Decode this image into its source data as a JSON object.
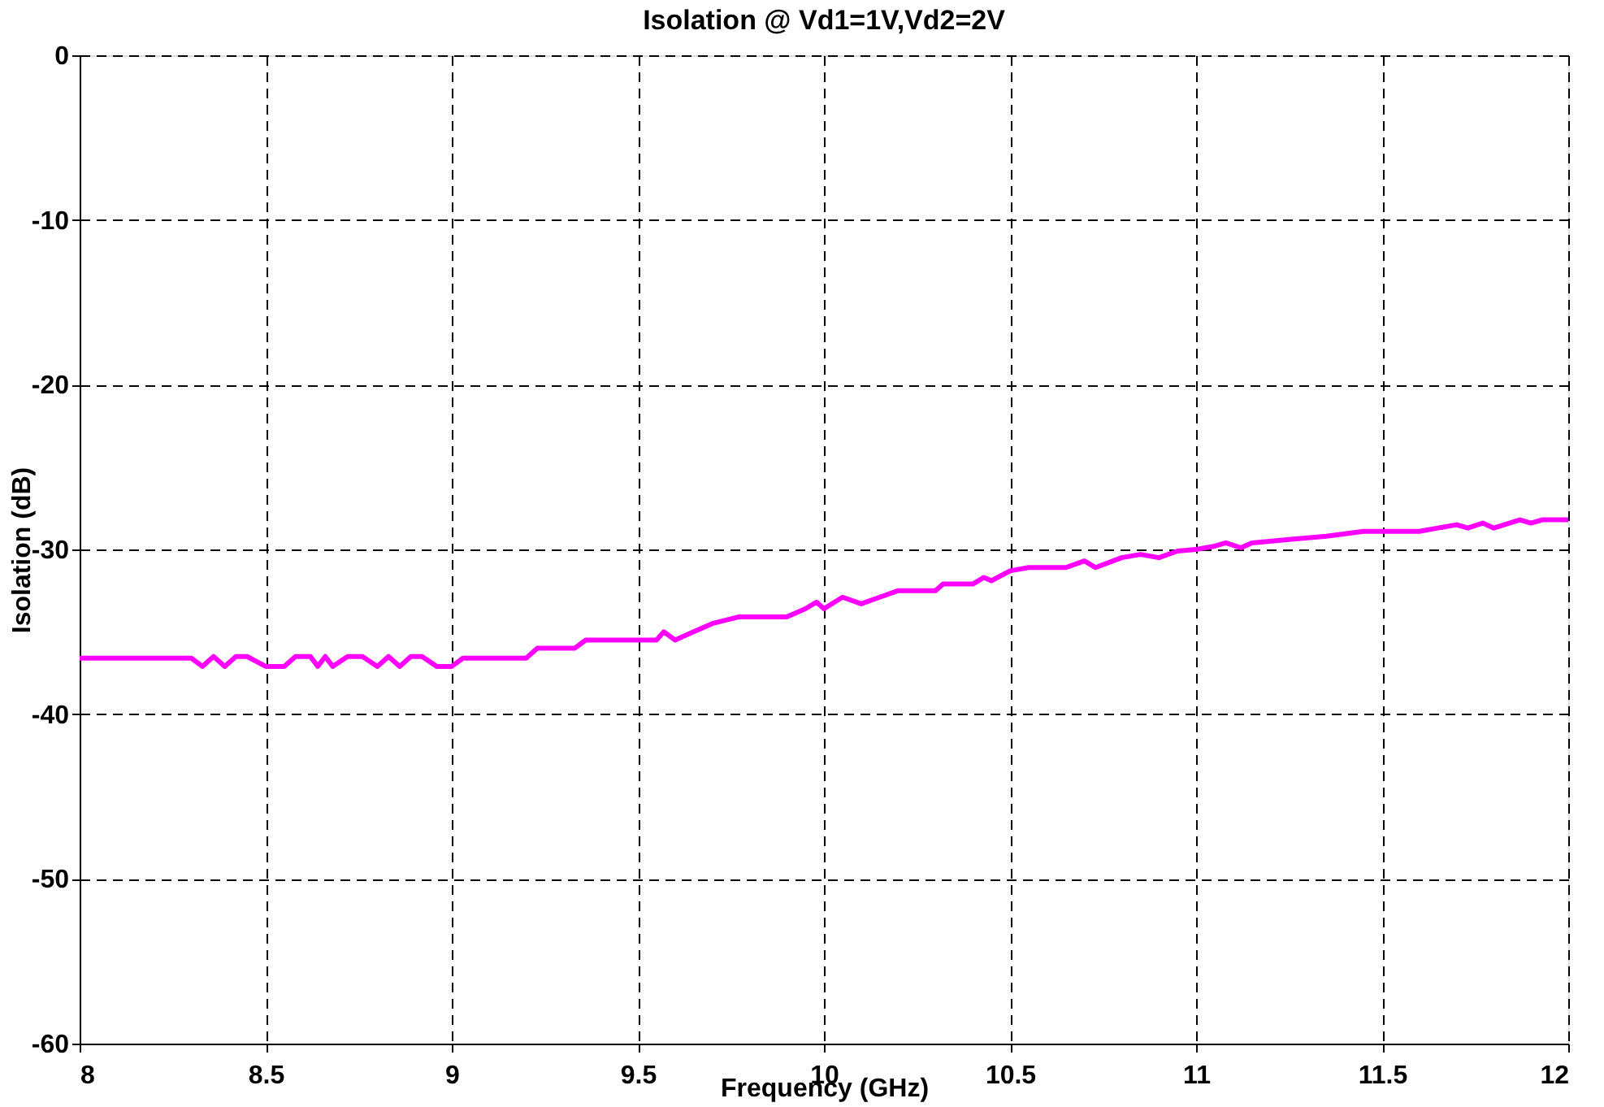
{
  "chart_data": {
    "type": "line",
    "title": "Isolation @ Vd1=1V,Vd2=2V",
    "xlabel": "Frequency (GHz)",
    "ylabel": "Isolation (dB)",
    "xlim": [
      8,
      12
    ],
    "xticks": [
      8,
      8.5,
      9,
      9.5,
      10,
      10.5,
      11,
      11.5,
      12
    ],
    "ylim": [
      -60,
      0
    ],
    "yticks": [
      -60,
      -50,
      -40,
      -30,
      -20,
      -10,
      0
    ],
    "grid": true,
    "marker": "none",
    "line_style": "solid",
    "series": [
      {
        "color": "#ff00ff",
        "x": [
          8,
          8.3,
          8.33,
          8.36,
          8.39,
          8.42,
          8.45,
          8.5,
          8.55,
          8.58,
          8.62,
          8.64,
          8.66,
          8.68,
          8.72,
          8.76,
          8.8,
          8.83,
          8.86,
          8.89,
          8.92,
          8.96,
          9.0,
          9.03,
          9.2,
          9.23,
          9.33,
          9.36,
          9.55,
          9.57,
          9.6,
          9.65,
          9.7,
          9.77,
          9.9,
          9.95,
          9.98,
          10.0,
          10.05,
          10.1,
          10.15,
          10.2,
          10.3,
          10.32,
          10.4,
          10.43,
          10.45,
          10.5,
          10.55,
          10.65,
          10.7,
          10.73,
          10.8,
          10.85,
          10.9,
          10.95,
          11.0,
          11.05,
          11.08,
          11.12,
          11.15,
          11.25,
          11.35,
          11.45,
          11.6,
          11.65,
          11.7,
          11.73,
          11.77,
          11.8,
          11.87,
          11.9,
          11.93,
          12
        ],
        "values": [
          -36.6,
          -36.6,
          -37.1,
          -36.5,
          -37.1,
          -36.5,
          -36.5,
          -37.1,
          -37.1,
          -36.5,
          -36.5,
          -37.1,
          -36.5,
          -37.1,
          -36.5,
          -36.5,
          -37.1,
          -36.5,
          -37.1,
          -36.5,
          -36.5,
          -37.1,
          -37.1,
          -36.6,
          -36.6,
          -36.0,
          -36.0,
          -35.5,
          -35.5,
          -35.0,
          -35.5,
          -35.0,
          -34.5,
          -34.1,
          -34.1,
          -33.6,
          -33.2,
          -33.6,
          -32.9,
          -33.3,
          -32.9,
          -32.5,
          -32.5,
          -32.1,
          -32.1,
          -31.7,
          -31.9,
          -31.3,
          -31.1,
          -31.1,
          -30.7,
          -31.1,
          -30.5,
          -30.3,
          -30.5,
          -30.1,
          -30.0,
          -29.8,
          -29.6,
          -29.9,
          -29.6,
          -29.4,
          -29.2,
          -28.9,
          -28.9,
          -28.7,
          -28.5,
          -28.7,
          -28.4,
          -28.7,
          -28.2,
          -28.4,
          -28.2,
          -28.2
        ]
      }
    ]
  }
}
